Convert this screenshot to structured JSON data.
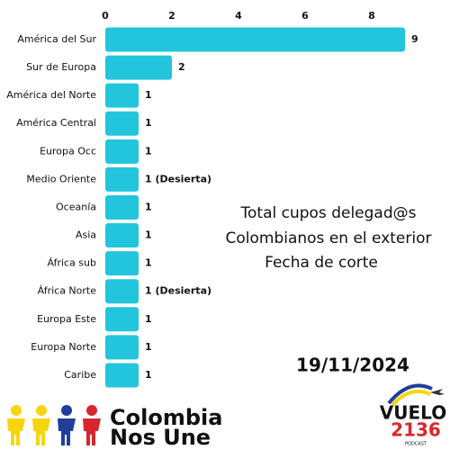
{
  "chart_data": {
    "type": "bar",
    "orientation": "horizontal",
    "categories": [
      "América del Sur",
      "Sur de Europa",
      "América del Norte",
      "América Central",
      "Europa Occ",
      "Medio Oriente",
      "Oceanía",
      "Asia",
      "África sub",
      "África Norte",
      "Europa Este",
      "Europa Norte",
      "Caribe"
    ],
    "values": [
      9,
      2,
      1,
      1,
      1,
      1,
      1,
      1,
      1,
      1,
      1,
      1,
      1
    ],
    "value_labels": [
      "9",
      "2",
      "1",
      "1",
      "1",
      "1 (Desierta)",
      "1",
      "1",
      "1",
      "1 (Desierta)",
      "1",
      "1",
      "1"
    ],
    "color": "#22c5dc",
    "xlim": [
      0,
      9.5
    ],
    "xticks": [
      0,
      2,
      4,
      6,
      8
    ],
    "grid": false,
    "annotations": [
      "Total cupos delegad@s",
      "Colombianos en el exterior",
      "Fecha de corte",
      "19/11/2024"
    ]
  },
  "logos": {
    "left": [
      "Colombia",
      "Nos Une"
    ],
    "right": [
      "VUELO",
      "2136",
      "PODCAST"
    ]
  }
}
